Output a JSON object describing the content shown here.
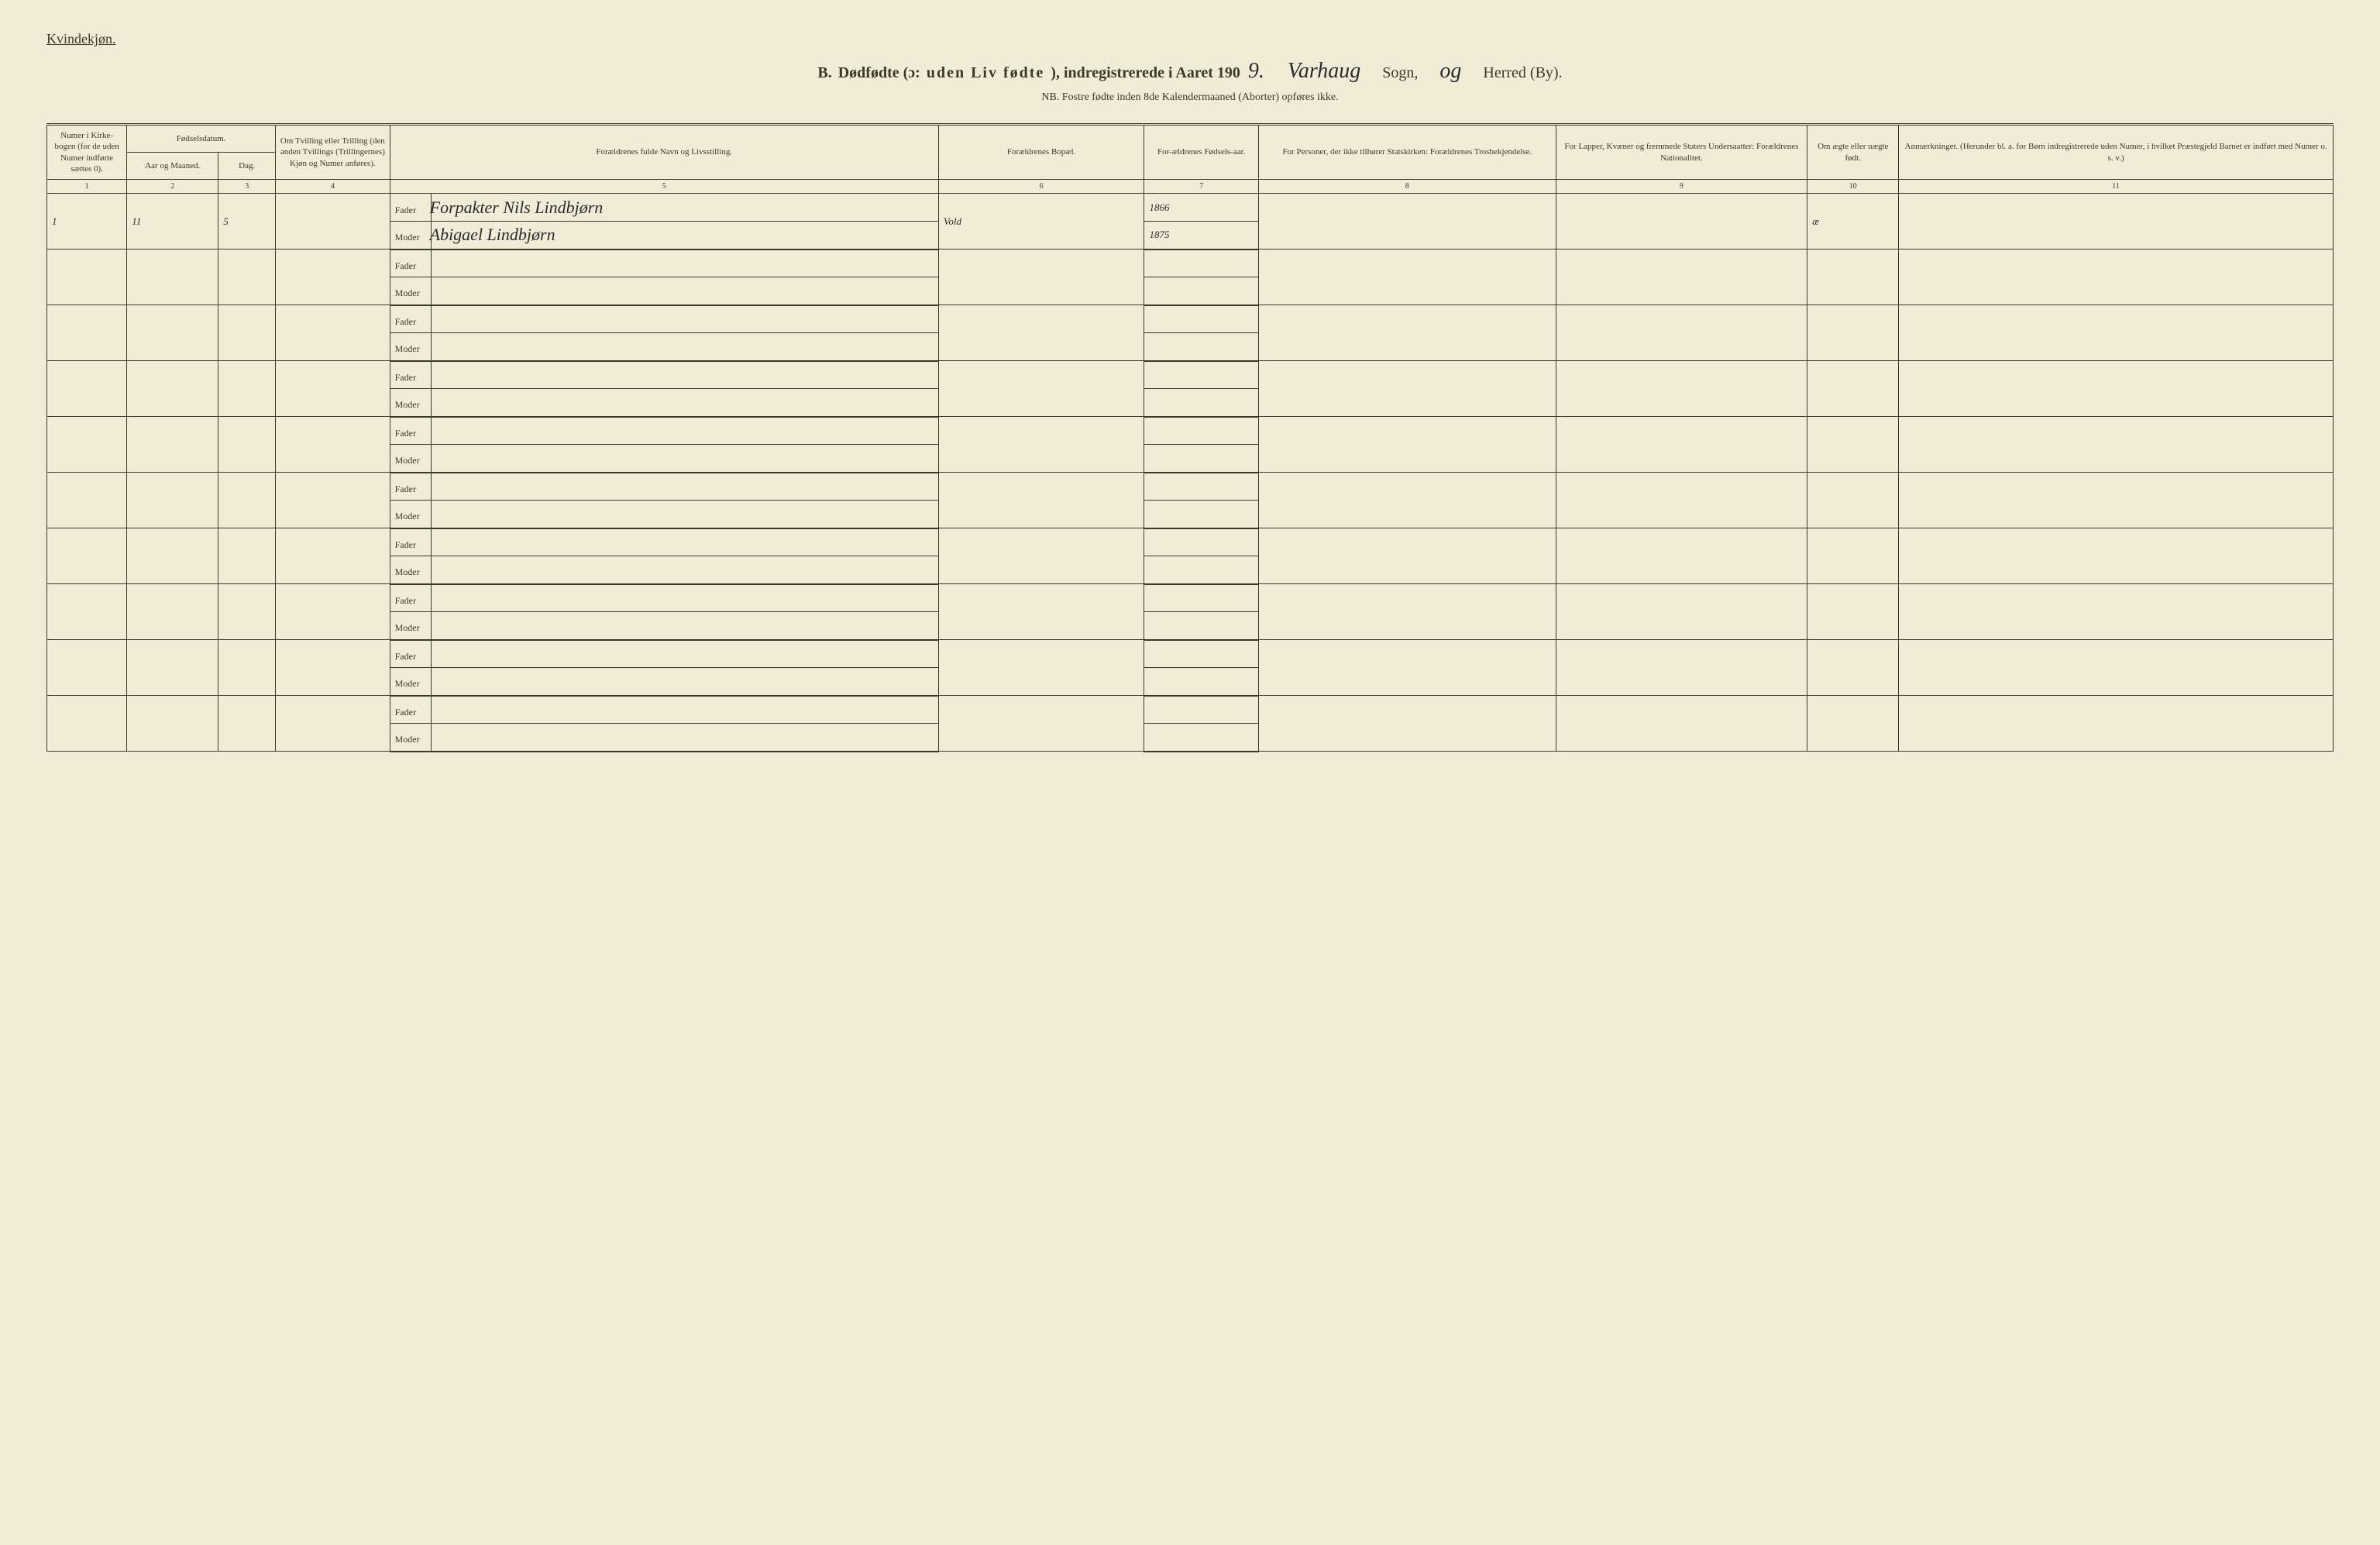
{
  "header": {
    "gender_label": "Kvindekjøn.",
    "title_prefix": "B.",
    "title_main": "Dødfødte (ɔ:",
    "title_spaced": "uden Liv fødte",
    "title_suffix": "), indregistrerede i Aaret 190",
    "year_suffix": "9.",
    "sogn_handwritten": "Varhaug",
    "sogn_label": "Sogn,",
    "herred_handwritten": "og",
    "herred_label": "Herred (By).",
    "subtitle": "NB. Fostre fødte inden 8de Kalendermaaned (Aborter) opføres ikke."
  },
  "columns": {
    "col1": "Numer i Kirke-bogen (for de uden Numer indførte sættes 0).",
    "col2_group": "Fødselsdatum.",
    "col2a": "Aar og Maaned.",
    "col2b": "Dag.",
    "col4": "Om Tvilling eller Trilling (den anden Tvillings (Trillingernes) Kjøn og Numer anføres).",
    "col5": "Forældrenes fulde Navn og Livsstilling.",
    "col6": "Forældrenes Bopæl.",
    "col7": "For-ældrenes Fødsels-aar.",
    "col8": "For Personer, der ikke tilhører Statskirken: Forældrenes Trosbekjendelse.",
    "col9": "For Lapper, Kvæner og fremmede Staters Undersaatter: Forældrenes Nationalitet.",
    "col10": "Om ægte eller uægte født.",
    "col11": "Anmærkninger. (Herunder bl. a. for Børn indregistrerede uden Numer, i hvilket Præstegjeld Barnet er indført med Numer o. s. v.)"
  },
  "col_numbers": [
    "1",
    "2",
    "3",
    "4",
    "5",
    "6",
    "7",
    "8",
    "9",
    "10",
    "11"
  ],
  "parent_labels": {
    "fader": "Fader",
    "moder": "Moder"
  },
  "entries": [
    {
      "numer": "1",
      "aar_maaned": "11",
      "dag": "5",
      "tvilling": "",
      "fader_navn": "Forpakter Nils Lindbjørn",
      "moder_navn": "Abigael Lindbjørn",
      "bopael": "Vold",
      "fader_aar": "1866",
      "moder_aar": "1875",
      "trosbekjendelse": "",
      "nationalitet": "",
      "aegte": "æ",
      "anmerkninger": ""
    }
  ],
  "empty_rows": 9,
  "styling": {
    "background_color": "#f0ecd8",
    "text_color": "#3a3a2a",
    "border_color": "#3a3a2a",
    "handwritten_color": "#2a2a2a",
    "header_fontsize": 11,
    "body_fontsize": 13,
    "title_fontsize": 20,
    "handwritten_fontsize": 28
  }
}
